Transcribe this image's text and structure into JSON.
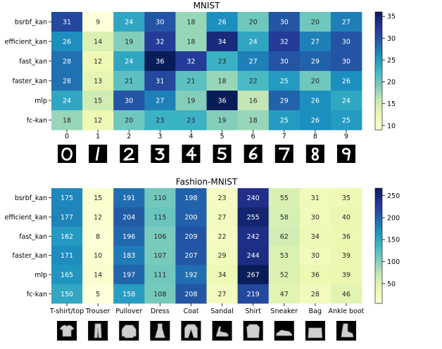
{
  "colors": {
    "colormap": [
      "#ffffd9",
      "#edf8b1",
      "#c7e9b4",
      "#7fcdbb",
      "#41b6c4",
      "#1d91c0",
      "#225ea8",
      "#253494",
      "#081d58"
    ],
    "text_dark": "#262626",
    "text_light": "#ffffff"
  },
  "chart_data": [
    {
      "type": "heatmap",
      "title": "MNIST",
      "rows": [
        "bsrbf_kan",
        "efficient_kan",
        "fast_kan",
        "faster_kan",
        "mlp",
        "fc-kan"
      ],
      "columns": [
        "0",
        "1",
        "2",
        "3",
        "4",
        "5",
        "6",
        "7",
        "8",
        "9"
      ],
      "values": [
        [
          31,
          9,
          24,
          30,
          18,
          26,
          20,
          30,
          20,
          27
        ],
        [
          26,
          14,
          19,
          32,
          18,
          34,
          24,
          32,
          27,
          30
        ],
        [
          28,
          12,
          24,
          36,
          32,
          23,
          27,
          30,
          29,
          30
        ],
        [
          28,
          13,
          21,
          31,
          21,
          18,
          22,
          25,
          20,
          26
        ],
        [
          24,
          15,
          30,
          27,
          19,
          36,
          16,
          29,
          26,
          24
        ],
        [
          18,
          12,
          20,
          23,
          23,
          19,
          18,
          25,
          26,
          25
        ]
      ],
      "vmin": 9,
      "vmax": 36,
      "colorbar_ticks": [
        10,
        15,
        20,
        25,
        30,
        35
      ],
      "sample_icons": [
        "digit-0-icon",
        "digit-1-icon",
        "digit-2-icon",
        "digit-3-icon",
        "digit-4-icon",
        "digit-5-icon",
        "digit-6-icon",
        "digit-7-icon",
        "digit-8-icon",
        "digit-9-icon"
      ]
    },
    {
      "type": "heatmap",
      "title": "Fashion-MNIST",
      "rows": [
        "bsrbf_kan",
        "efficient_kan",
        "fast_kan",
        "faster_kan",
        "mlp",
        "fc-kan"
      ],
      "columns": [
        "T-shirt/top",
        "Trouser",
        "Pullover",
        "Dress",
        "Coat",
        "Sandal",
        "Shirt",
        "Sneaker",
        "Bag",
        "Ankle boot"
      ],
      "values": [
        [
          175,
          15,
          191,
          110,
          198,
          23,
          240,
          55,
          31,
          35
        ],
        [
          177,
          12,
          204,
          115,
          200,
          27,
          255,
          58,
          30,
          40
        ],
        [
          162,
          8,
          196,
          106,
          209,
          22,
          242,
          62,
          34,
          36
        ],
        [
          171,
          10,
          183,
          107,
          207,
          29,
          244,
          53,
          30,
          39
        ],
        [
          165,
          14,
          197,
          111,
          192,
          34,
          267,
          52,
          36,
          39
        ],
        [
          150,
          5,
          158,
          108,
          208,
          27,
          219,
          47,
          28,
          46
        ]
      ],
      "vmin": 5,
      "vmax": 267,
      "colorbar_ticks": [
        50,
        100,
        150,
        200,
        250
      ],
      "sample_icons": [
        "tshirt-icon",
        "trouser-icon",
        "pullover-icon",
        "dress-icon",
        "coat-icon",
        "sandal-icon",
        "shirt-icon",
        "sneaker-icon",
        "bag-icon",
        "ankle-boot-icon"
      ]
    }
  ]
}
